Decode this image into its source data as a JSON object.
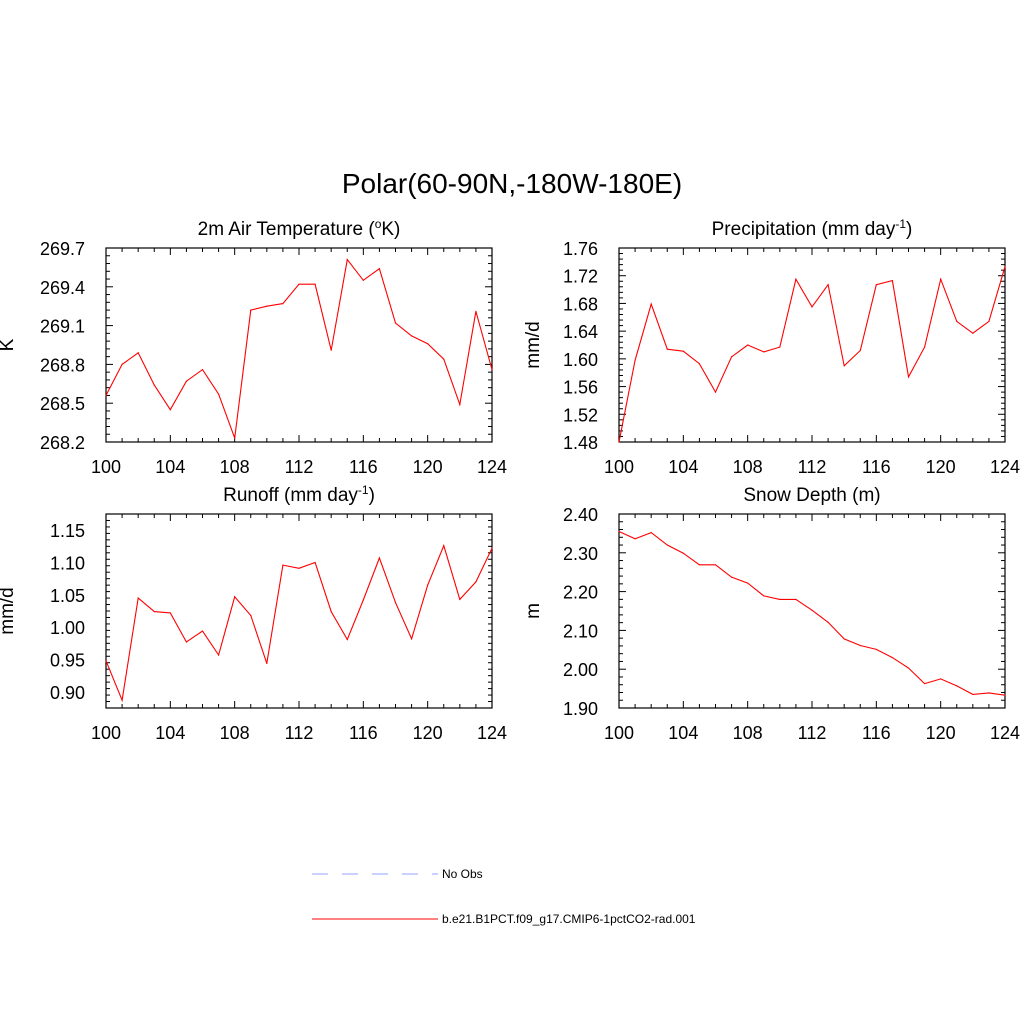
{
  "main_title": "Polar(60-90N,-180W-180E)",
  "colors": {
    "model_line": "#ff0000",
    "obs_line": "#aab4ff",
    "frame": "#000000"
  },
  "legend": {
    "items": [
      {
        "label": "No Obs",
        "style": "dashed",
        "color": "#aab4ff"
      },
      {
        "label": "b.e21.B1PCT.f09_g17.CMIP6-1pctCO2-rad.001",
        "style": "solid",
        "color": "#ff0000"
      }
    ]
  },
  "chart_data": [
    {
      "type": "line",
      "title": "2m Air Temperature (°K)",
      "title_pre": "2m Air Temperature (",
      "title_sup": "o",
      "title_post": "K)",
      "xlabel": "",
      "ylabel": "K",
      "xlim": [
        100,
        124
      ],
      "ylim": [
        268.2,
        269.7
      ],
      "xticks": [
        100,
        104,
        108,
        112,
        116,
        120,
        124
      ],
      "xtick_labels": [
        "100",
        "104",
        "108",
        "112",
        "116",
        "120",
        "124"
      ],
      "yticks": [
        268.2,
        268.5,
        268.8,
        269.1,
        269.4,
        269.7
      ],
      "ytick_labels": [
        "268.2",
        "268.5",
        "268.8",
        "269.1",
        "269.4",
        "269.7"
      ],
      "x": [
        100,
        101,
        102,
        103,
        104,
        105,
        106,
        107,
        108,
        109,
        110,
        111,
        112,
        113,
        114,
        115,
        116,
        117,
        118,
        119,
        120,
        121,
        122,
        123,
        124
      ],
      "series": [
        {
          "values": [
            268.56,
            268.8,
            268.89,
            268.64,
            268.45,
            268.67,
            268.76,
            268.57,
            268.23,
            269.22,
            269.25,
            269.27,
            269.42,
            269.42,
            268.91,
            269.61,
            269.45,
            269.54,
            269.12,
            269.02,
            268.96,
            268.84,
            268.49,
            269.21,
            268.76
          ]
        }
      ]
    },
    {
      "type": "line",
      "title": "Precipitation (mm day-1)",
      "title_pre": "Precipitation (mm day",
      "title_sup": "-1",
      "title_post": ")",
      "xlabel": "",
      "ylabel": "mm/d",
      "xlim": [
        100,
        124
      ],
      "ylim": [
        1.48,
        1.76
      ],
      "xticks": [
        100,
        104,
        108,
        112,
        116,
        120,
        124
      ],
      "xtick_labels": [
        "100",
        "104",
        "108",
        "112",
        "116",
        "120",
        "124"
      ],
      "yticks": [
        1.48,
        1.52,
        1.56,
        1.6,
        1.64,
        1.68,
        1.72,
        1.76
      ],
      "ytick_labels": [
        "1.48",
        "1.52",
        "1.56",
        "1.60",
        "1.64",
        "1.68",
        "1.72",
        "1.76"
      ],
      "x": [
        100,
        101,
        102,
        103,
        104,
        105,
        106,
        107,
        108,
        109,
        110,
        111,
        112,
        113,
        114,
        115,
        116,
        117,
        118,
        119,
        120,
        121,
        122,
        123,
        124
      ],
      "series": [
        {
          "values": [
            1.48,
            1.598,
            1.679,
            1.614,
            1.611,
            1.593,
            1.552,
            1.603,
            1.62,
            1.61,
            1.617,
            1.715,
            1.675,
            1.707,
            1.59,
            1.612,
            1.707,
            1.713,
            1.574,
            1.617,
            1.715,
            1.654,
            1.637,
            1.654,
            1.733
          ]
        }
      ]
    },
    {
      "type": "line",
      "title": "Runoff (mm day-1)",
      "title_pre": "Runoff (mm day",
      "title_sup": "-1",
      "title_post": ")",
      "xlabel": "",
      "ylabel": "mm/d",
      "xlim": [
        100,
        124
      ],
      "ylim": [
        0.875,
        1.175
      ],
      "xticks": [
        100,
        104,
        108,
        112,
        116,
        120,
        124
      ],
      "xtick_labels": [
        "100",
        "104",
        "108",
        "112",
        "116",
        "120",
        "124"
      ],
      "yticks": [
        0.9,
        0.95,
        1.0,
        1.05,
        1.1,
        1.15
      ],
      "ytick_labels": [
        "0.90",
        "0.95",
        "1.00",
        "1.05",
        "1.10",
        "1.15"
      ],
      "x": [
        100,
        101,
        102,
        103,
        104,
        105,
        106,
        107,
        108,
        109,
        110,
        111,
        112,
        113,
        114,
        115,
        116,
        117,
        118,
        119,
        120,
        121,
        122,
        123,
        124
      ],
      "series": [
        {
          "values": [
            0.948,
            0.887,
            1.045,
            1.024,
            1.022,
            0.977,
            0.994,
            0.957,
            1.047,
            1.018,
            0.944,
            1.096,
            1.091,
            1.1,
            1.024,
            0.981,
            1.042,
            1.107,
            1.038,
            0.982,
            1.065,
            1.126,
            1.043,
            1.07,
            1.122
          ]
        }
      ]
    },
    {
      "type": "line",
      "title": "Snow Depth (m)",
      "title_pre": "Snow Depth (m)",
      "title_sup": "",
      "title_post": "",
      "xlabel": "",
      "ylabel": "m",
      "xlim": [
        100,
        124
      ],
      "ylim": [
        1.9,
        2.4
      ],
      "xticks": [
        100,
        104,
        108,
        112,
        116,
        120,
        124
      ],
      "xtick_labels": [
        "100",
        "104",
        "108",
        "112",
        "116",
        "120",
        "124"
      ],
      "yticks": [
        1.9,
        2.0,
        2.1,
        2.2,
        2.3,
        2.4
      ],
      "ytick_labels": [
        "1.90",
        "2.00",
        "2.10",
        "2.20",
        "2.30",
        "2.40"
      ],
      "x": [
        100,
        101,
        102,
        103,
        104,
        105,
        106,
        107,
        108,
        109,
        110,
        111,
        112,
        113,
        114,
        115,
        116,
        117,
        118,
        119,
        120,
        121,
        122,
        123,
        124
      ],
      "series": [
        {
          "values": [
            2.355,
            2.336,
            2.352,
            2.32,
            2.299,
            2.269,
            2.269,
            2.237,
            2.222,
            2.189,
            2.18,
            2.18,
            2.152,
            2.121,
            2.078,
            2.061,
            2.051,
            2.03,
            2.003,
            1.963,
            1.975,
            1.957,
            1.935,
            1.939,
            1.933
          ]
        }
      ]
    }
  ]
}
